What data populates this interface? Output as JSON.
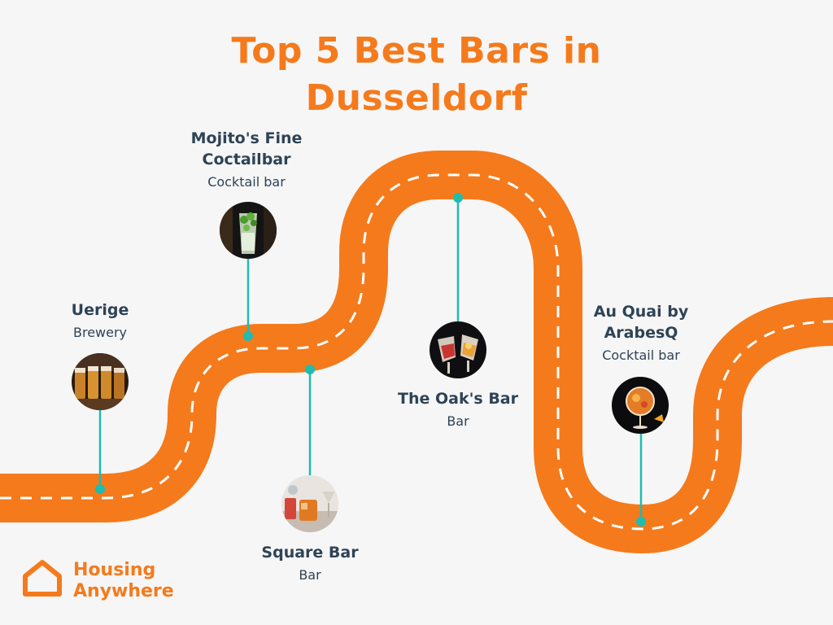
{
  "title": {
    "line1": "Top 5 Best Bars in",
    "line2": "Dusseldorf"
  },
  "colors": {
    "accent": "#f57a1c",
    "road": "#f57a1c",
    "connector": "#1fbcb0",
    "text": "#2e4356",
    "background": "#f6f6f6"
  },
  "stops": [
    {
      "name": "Uerige",
      "type": "Brewery",
      "photo": "beer-glasses"
    },
    {
      "name": "Mojito's Fine Coctailbar",
      "type": "Cocktail bar",
      "photo": "mojito-glass"
    },
    {
      "name": "Square Bar",
      "type": "Bar",
      "photo": "cocktail-glasses"
    },
    {
      "name": "The Oak's Bar",
      "type": "Bar",
      "photo": "drinks-toast"
    },
    {
      "name": "Au Quai by ArabesQ",
      "type": "Cocktail bar",
      "photo": "spritz-glass"
    }
  ],
  "brand": {
    "line1": "Housing",
    "line2": "Anywhere",
    "icon": "house-icon"
  }
}
